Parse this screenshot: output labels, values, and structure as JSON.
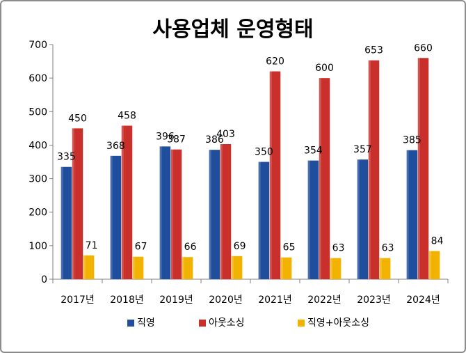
{
  "chart_data": {
    "type": "bar",
    "title": "사용업체 운영형태",
    "categories": [
      "2017년",
      "2018년",
      "2019년",
      "2020년",
      "2021년",
      "2022년",
      "2023년",
      "2024년"
    ],
    "series": [
      {
        "name": "직영",
        "values": [
          335,
          368,
          396,
          386,
          350,
          354,
          357,
          385
        ],
        "color": "#1f4e9c"
      },
      {
        "name": "아웃소싱",
        "values": [
          450,
          458,
          387,
          403,
          620,
          600,
          653,
          660
        ],
        "color": "#c9302c"
      },
      {
        "name": "직영+아웃소싱",
        "values": [
          71,
          67,
          66,
          69,
          65,
          63,
          63,
          84
        ],
        "color": "#f2b200"
      }
    ],
    "ylim": [
      0,
      700
    ],
    "yticks": [
      "0",
      "100",
      "200",
      "300",
      "400",
      "500",
      "600",
      "700"
    ],
    "grid": false,
    "legend": "bottom",
    "xlabel": "",
    "ylabel": ""
  }
}
